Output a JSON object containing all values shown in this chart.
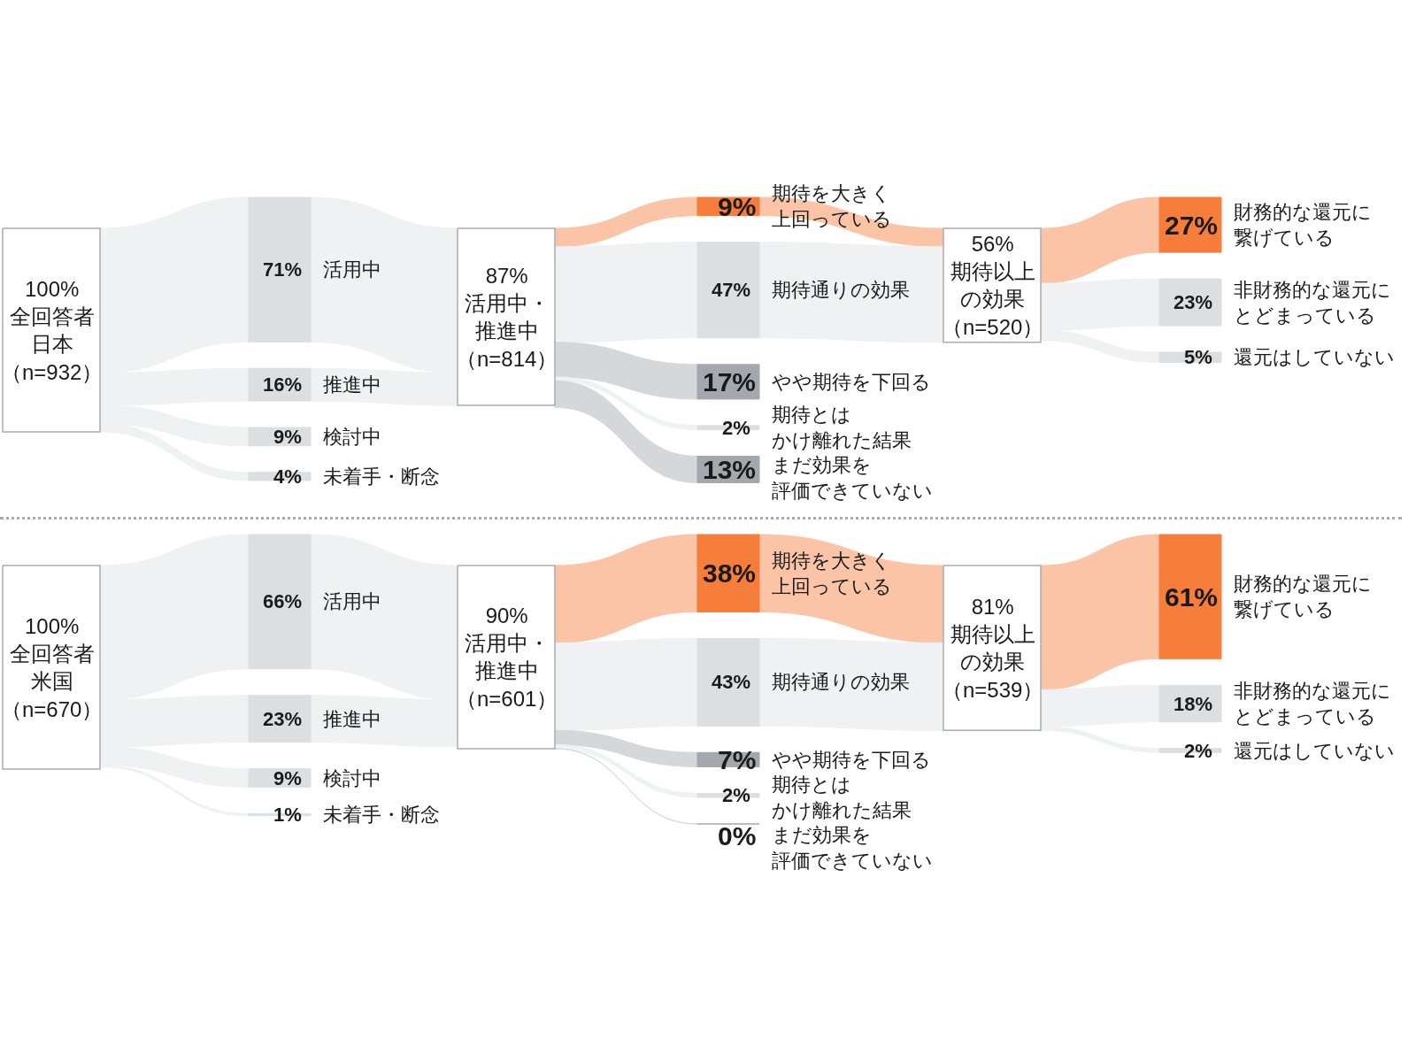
{
  "chart_data": [
    {
      "type": "other",
      "categories": [
        "全回答者日本（n=932）",
        "活用中",
        "推進中",
        "検討中",
        "未着手・断念",
        "活用中・推進中（n=814）",
        "期待を大きく上回っている",
        "期待通りの効果",
        "やや期待を下回る",
        "期待とはかけ離れた結果",
        "まだ効果を評価できていない",
        "期待以上の効果（n=520）",
        "財務的な還元に繋げている",
        "非財務的な還元にとどまっている",
        "還元はしていない"
      ],
      "series": [
        {
          "values": [
            100,
            null,
            null,
            null,
            null,
            null,
            null,
            null,
            null,
            null,
            null,
            null,
            null,
            null,
            null
          ],
          "value_labels": [
            "100%",
            null,
            null,
            null,
            null,
            null,
            null,
            null,
            null,
            null,
            null,
            null,
            null,
            null,
            null
          ],
          "colors": [
            "#ffffff",
            null,
            null,
            null,
            null,
            null,
            null,
            null,
            null,
            null,
            null,
            null,
            null,
            null,
            null
          ]
        },
        {
          "values": [
            null,
            71,
            16,
            9,
            4,
            null,
            null,
            null,
            null,
            null,
            null,
            null,
            null,
            null,
            null
          ],
          "value_labels": [
            null,
            "71%",
            "16%",
            "9%",
            "4%",
            null,
            null,
            null,
            null,
            null,
            null,
            null,
            null,
            null,
            null
          ],
          "colors": [
            null,
            "#dcdfe2",
            "#dcdfe2",
            "#dcdfe2",
            "#dcdfe2",
            null,
            null,
            null,
            null,
            null,
            null,
            null,
            null,
            null,
            null
          ]
        },
        {
          "values": [
            null,
            null,
            null,
            null,
            null,
            87,
            null,
            null,
            null,
            null,
            null,
            null,
            null,
            null,
            null
          ],
          "value_labels": [
            null,
            null,
            null,
            null,
            null,
            "87%",
            null,
            null,
            null,
            null,
            null,
            null,
            null,
            null,
            null
          ],
          "colors": [
            null,
            null,
            null,
            null,
            null,
            "#ffffff",
            null,
            null,
            null,
            null,
            null,
            null,
            null,
            null,
            null
          ]
        },
        {
          "values": [
            null,
            null,
            null,
            null,
            null,
            null,
            9,
            47,
            17,
            2,
            13,
            null,
            null,
            null,
            null
          ],
          "value_labels": [
            null,
            null,
            null,
            null,
            null,
            null,
            "9%",
            "47%",
            "17%",
            "2%",
            "13%",
            null,
            null,
            null,
            null
          ],
          "colors": [
            null,
            null,
            null,
            null,
            null,
            null,
            "#f67d3a",
            "#dcdfe2",
            "#a3a7ae",
            "#dcdfe2",
            "#a3a7ae",
            null,
            null,
            null,
            null
          ]
        },
        {
          "values": [
            null,
            null,
            null,
            null,
            null,
            null,
            null,
            null,
            null,
            null,
            null,
            56,
            null,
            null,
            null
          ],
          "value_labels": [
            null,
            null,
            null,
            null,
            null,
            null,
            null,
            null,
            null,
            null,
            null,
            "56%",
            null,
            null,
            null
          ],
          "colors": [
            null,
            null,
            null,
            null,
            null,
            null,
            null,
            null,
            null,
            null,
            null,
            "#ffffff",
            null,
            null,
            null
          ]
        },
        {
          "values": [
            null,
            null,
            null,
            null,
            null,
            null,
            null,
            null,
            null,
            null,
            null,
            null,
            27,
            23,
            5
          ],
          "value_labels": [
            null,
            null,
            null,
            null,
            null,
            null,
            null,
            null,
            null,
            null,
            null,
            null,
            "27%",
            "23%",
            "5%"
          ],
          "colors": [
            null,
            null,
            null,
            null,
            null,
            null,
            null,
            null,
            null,
            null,
            null,
            null,
            "#f67d3a",
            "#dcdfe2",
            "#dcdfe2"
          ]
        }
      ]
    },
    {
      "type": "other",
      "categories": [
        "全回答者米国（n=670）",
        "活用中",
        "推進中",
        "検討中",
        "未着手・断念",
        "活用中・推進中（n=601）",
        "期待を大きく上回っている",
        "期待通りの効果",
        "やや期待を下回る",
        "期待とはかけ離れた結果",
        "まだ効果を評価できていない",
        "期待以上の効果（n=539）",
        "財務的な還元に繋げている",
        "非財務的な還元にとどまっている",
        "還元はしていない"
      ],
      "series": [
        {
          "values": [
            100,
            null,
            null,
            null,
            null,
            null,
            null,
            null,
            null,
            null,
            null,
            null,
            null,
            null,
            null
          ],
          "value_labels": [
            "100%",
            null,
            null,
            null,
            null,
            null,
            null,
            null,
            null,
            null,
            null,
            null,
            null,
            null,
            null
          ],
          "colors": [
            "#ffffff",
            null,
            null,
            null,
            null,
            null,
            null,
            null,
            null,
            null,
            null,
            null,
            null,
            null,
            null
          ]
        },
        {
          "values": [
            null,
            66,
            23,
            9,
            1,
            null,
            null,
            null,
            null,
            null,
            null,
            null,
            null,
            null,
            null
          ],
          "value_labels": [
            null,
            "66%",
            "23%",
            "9%",
            "1%",
            null,
            null,
            null,
            null,
            null,
            null,
            null,
            null,
            null,
            null
          ],
          "colors": [
            null,
            "#dcdfe2",
            "#dcdfe2",
            "#dcdfe2",
            "#dcdfe2",
            null,
            null,
            null,
            null,
            null,
            null,
            null,
            null,
            null,
            null
          ]
        },
        {
          "values": [
            null,
            null,
            null,
            null,
            null,
            90,
            null,
            null,
            null,
            null,
            null,
            null,
            null,
            null,
            null
          ],
          "value_labels": [
            null,
            null,
            null,
            null,
            null,
            "90%",
            null,
            null,
            null,
            null,
            null,
            null,
            null,
            null,
            null
          ],
          "colors": [
            null,
            null,
            null,
            null,
            null,
            "#ffffff",
            null,
            null,
            null,
            null,
            null,
            null,
            null,
            null,
            null
          ]
        },
        {
          "values": [
            null,
            null,
            null,
            null,
            null,
            null,
            38,
            43,
            7,
            2,
            0,
            null,
            null,
            null,
            null
          ],
          "value_labels": [
            null,
            null,
            null,
            null,
            null,
            null,
            "38%",
            "43%",
            "7%",
            "2%",
            "0%",
            null,
            null,
            null,
            null
          ],
          "colors": [
            null,
            null,
            null,
            null,
            null,
            null,
            "#f67d3a",
            "#dcdfe2",
            "#a3a7ae",
            "#dcdfe2",
            "#a3a7ae",
            null,
            null,
            null,
            null
          ]
        },
        {
          "values": [
            null,
            null,
            null,
            null,
            null,
            null,
            null,
            null,
            null,
            null,
            null,
            81,
            null,
            null,
            null
          ],
          "value_labels": [
            null,
            null,
            null,
            null,
            null,
            null,
            null,
            null,
            null,
            null,
            null,
            "81%",
            null,
            null,
            null
          ],
          "colors": [
            null,
            null,
            null,
            null,
            null,
            null,
            null,
            null,
            null,
            null,
            null,
            "#ffffff",
            null,
            null,
            null
          ]
        },
        {
          "values": [
            null,
            null,
            null,
            null,
            null,
            null,
            null,
            null,
            null,
            null,
            null,
            null,
            61,
            18,
            2
          ],
          "value_labels": [
            null,
            null,
            null,
            null,
            null,
            null,
            null,
            null,
            null,
            null,
            null,
            null,
            "61%",
            "18%",
            "2%"
          ],
          "colors": [
            null,
            null,
            null,
            null,
            null,
            null,
            null,
            null,
            null,
            null,
            null,
            null,
            "#f67d3a",
            "#dcdfe2",
            "#dcdfe2"
          ]
        }
      ]
    }
  ]
}
